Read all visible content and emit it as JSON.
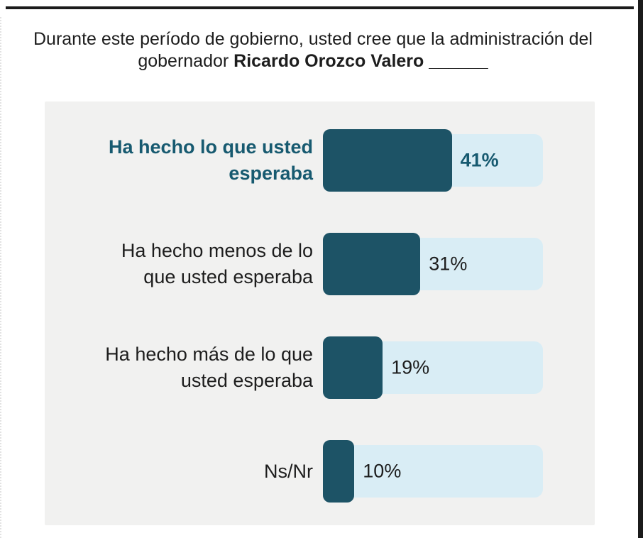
{
  "title": {
    "line1": "Durante este período de gobierno, usted cree que la administración del",
    "line2_prefix": "gobernador ",
    "line2_bold": "Ricardo Orozco Valero",
    "line2_blank": " ______"
  },
  "colors": {
    "bar": "#1d5366",
    "track": "#d9edf5",
    "highlight_text": "#175a70",
    "text": "#1d1d1d",
    "panel_background": "#f1f1f0",
    "frame": "#1b1b1b"
  },
  "chart_data": {
    "type": "bar",
    "orientation": "horizontal",
    "title": "Durante este período de gobierno, usted cree que la administración del gobernador Ricardo Orozco Valero ______",
    "categories": [
      "Ha hecho lo que usted esperaba",
      "Ha hecho menos de lo que usted esperaba",
      "Ha hecho más de lo que usted esperaba",
      "Ns/Nr"
    ],
    "values": [
      41,
      31,
      19,
      10
    ],
    "value_labels": [
      "41%",
      "31%",
      "19%",
      "10%"
    ],
    "highlighted_index": 0,
    "xlim": [
      0,
      70
    ],
    "grid": false,
    "legend": false,
    "bar_color": "#1d5366",
    "track_color": "#d9edf5"
  }
}
